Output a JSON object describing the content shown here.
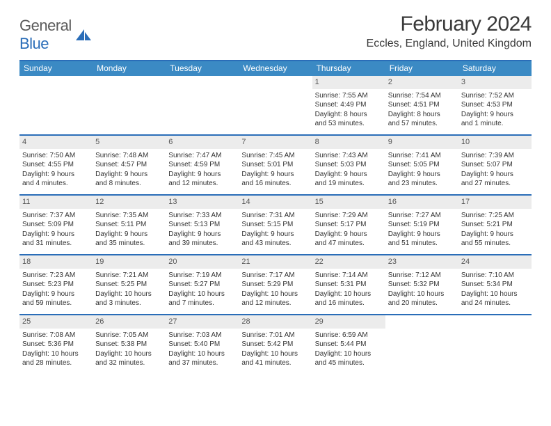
{
  "logo": {
    "general": "General",
    "blue": "Blue"
  },
  "title": "February 2024",
  "location": "Eccles, England, United Kingdom",
  "colors": {
    "accent": "#2a6db8",
    "header_bg": "#3b8ac4",
    "daynum_bg": "#ececec",
    "text": "#333333"
  },
  "weekdays": [
    "Sunday",
    "Monday",
    "Tuesday",
    "Wednesday",
    "Thursday",
    "Friday",
    "Saturday"
  ],
  "weeks": [
    [
      {
        "n": "",
        "lines": []
      },
      {
        "n": "",
        "lines": []
      },
      {
        "n": "",
        "lines": []
      },
      {
        "n": "",
        "lines": []
      },
      {
        "n": "1",
        "lines": [
          "Sunrise: 7:55 AM",
          "Sunset: 4:49 PM",
          "Daylight: 8 hours",
          "and 53 minutes."
        ]
      },
      {
        "n": "2",
        "lines": [
          "Sunrise: 7:54 AM",
          "Sunset: 4:51 PM",
          "Daylight: 8 hours",
          "and 57 minutes."
        ]
      },
      {
        "n": "3",
        "lines": [
          "Sunrise: 7:52 AM",
          "Sunset: 4:53 PM",
          "Daylight: 9 hours",
          "and 1 minute."
        ]
      }
    ],
    [
      {
        "n": "4",
        "lines": [
          "Sunrise: 7:50 AM",
          "Sunset: 4:55 PM",
          "Daylight: 9 hours",
          "and 4 minutes."
        ]
      },
      {
        "n": "5",
        "lines": [
          "Sunrise: 7:48 AM",
          "Sunset: 4:57 PM",
          "Daylight: 9 hours",
          "and 8 minutes."
        ]
      },
      {
        "n": "6",
        "lines": [
          "Sunrise: 7:47 AM",
          "Sunset: 4:59 PM",
          "Daylight: 9 hours",
          "and 12 minutes."
        ]
      },
      {
        "n": "7",
        "lines": [
          "Sunrise: 7:45 AM",
          "Sunset: 5:01 PM",
          "Daylight: 9 hours",
          "and 16 minutes."
        ]
      },
      {
        "n": "8",
        "lines": [
          "Sunrise: 7:43 AM",
          "Sunset: 5:03 PM",
          "Daylight: 9 hours",
          "and 19 minutes."
        ]
      },
      {
        "n": "9",
        "lines": [
          "Sunrise: 7:41 AM",
          "Sunset: 5:05 PM",
          "Daylight: 9 hours",
          "and 23 minutes."
        ]
      },
      {
        "n": "10",
        "lines": [
          "Sunrise: 7:39 AM",
          "Sunset: 5:07 PM",
          "Daylight: 9 hours",
          "and 27 minutes."
        ]
      }
    ],
    [
      {
        "n": "11",
        "lines": [
          "Sunrise: 7:37 AM",
          "Sunset: 5:09 PM",
          "Daylight: 9 hours",
          "and 31 minutes."
        ]
      },
      {
        "n": "12",
        "lines": [
          "Sunrise: 7:35 AM",
          "Sunset: 5:11 PM",
          "Daylight: 9 hours",
          "and 35 minutes."
        ]
      },
      {
        "n": "13",
        "lines": [
          "Sunrise: 7:33 AM",
          "Sunset: 5:13 PM",
          "Daylight: 9 hours",
          "and 39 minutes."
        ]
      },
      {
        "n": "14",
        "lines": [
          "Sunrise: 7:31 AM",
          "Sunset: 5:15 PM",
          "Daylight: 9 hours",
          "and 43 minutes."
        ]
      },
      {
        "n": "15",
        "lines": [
          "Sunrise: 7:29 AM",
          "Sunset: 5:17 PM",
          "Daylight: 9 hours",
          "and 47 minutes."
        ]
      },
      {
        "n": "16",
        "lines": [
          "Sunrise: 7:27 AM",
          "Sunset: 5:19 PM",
          "Daylight: 9 hours",
          "and 51 minutes."
        ]
      },
      {
        "n": "17",
        "lines": [
          "Sunrise: 7:25 AM",
          "Sunset: 5:21 PM",
          "Daylight: 9 hours",
          "and 55 minutes."
        ]
      }
    ],
    [
      {
        "n": "18",
        "lines": [
          "Sunrise: 7:23 AM",
          "Sunset: 5:23 PM",
          "Daylight: 9 hours",
          "and 59 minutes."
        ]
      },
      {
        "n": "19",
        "lines": [
          "Sunrise: 7:21 AM",
          "Sunset: 5:25 PM",
          "Daylight: 10 hours",
          "and 3 minutes."
        ]
      },
      {
        "n": "20",
        "lines": [
          "Sunrise: 7:19 AM",
          "Sunset: 5:27 PM",
          "Daylight: 10 hours",
          "and 7 minutes."
        ]
      },
      {
        "n": "21",
        "lines": [
          "Sunrise: 7:17 AM",
          "Sunset: 5:29 PM",
          "Daylight: 10 hours",
          "and 12 minutes."
        ]
      },
      {
        "n": "22",
        "lines": [
          "Sunrise: 7:14 AM",
          "Sunset: 5:31 PM",
          "Daylight: 10 hours",
          "and 16 minutes."
        ]
      },
      {
        "n": "23",
        "lines": [
          "Sunrise: 7:12 AM",
          "Sunset: 5:32 PM",
          "Daylight: 10 hours",
          "and 20 minutes."
        ]
      },
      {
        "n": "24",
        "lines": [
          "Sunrise: 7:10 AM",
          "Sunset: 5:34 PM",
          "Daylight: 10 hours",
          "and 24 minutes."
        ]
      }
    ],
    [
      {
        "n": "25",
        "lines": [
          "Sunrise: 7:08 AM",
          "Sunset: 5:36 PM",
          "Daylight: 10 hours",
          "and 28 minutes."
        ]
      },
      {
        "n": "26",
        "lines": [
          "Sunrise: 7:05 AM",
          "Sunset: 5:38 PM",
          "Daylight: 10 hours",
          "and 32 minutes."
        ]
      },
      {
        "n": "27",
        "lines": [
          "Sunrise: 7:03 AM",
          "Sunset: 5:40 PM",
          "Daylight: 10 hours",
          "and 37 minutes."
        ]
      },
      {
        "n": "28",
        "lines": [
          "Sunrise: 7:01 AM",
          "Sunset: 5:42 PM",
          "Daylight: 10 hours",
          "and 41 minutes."
        ]
      },
      {
        "n": "29",
        "lines": [
          "Sunrise: 6:59 AM",
          "Sunset: 5:44 PM",
          "Daylight: 10 hours",
          "and 45 minutes."
        ]
      },
      {
        "n": "",
        "lines": []
      },
      {
        "n": "",
        "lines": []
      }
    ]
  ]
}
